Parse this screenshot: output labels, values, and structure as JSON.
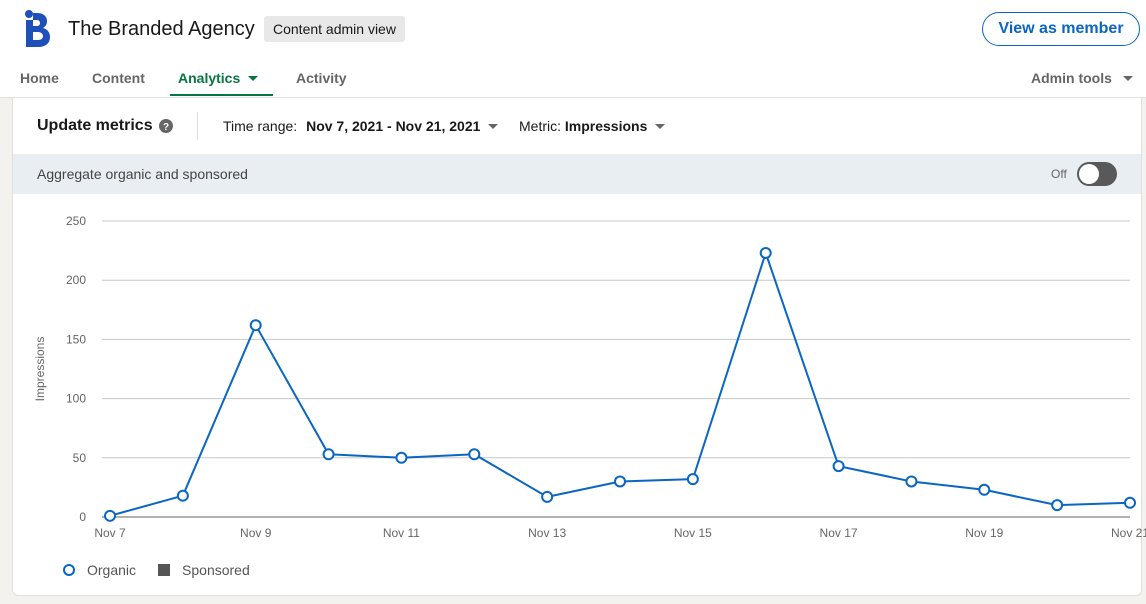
{
  "header": {
    "org_name": "The Branded Agency",
    "admin_badge": "Content admin view",
    "view_as_member": "View as member",
    "logo_icon": "branded-agency-logo"
  },
  "nav": {
    "home": "Home",
    "content": "Content",
    "analytics": "Analytics",
    "activity": "Activity",
    "admin_tools": "Admin tools"
  },
  "controls": {
    "title": "Update metrics",
    "time_range_label": "Time range:",
    "time_range_value": "Nov 7, 2021 - Nov 21, 2021",
    "metric_label": "Metric:",
    "metric_value": "Impressions"
  },
  "aggregate": {
    "label": "Aggregate organic and sponsored",
    "toggle_state": "Off"
  },
  "colors": {
    "accent": "#0a66c2",
    "active_tab": "#057642",
    "sponsored": "#555555"
  },
  "chart_data": {
    "type": "line",
    "ylabel": "Impressions",
    "ylim": [
      0,
      250
    ],
    "yticks": [
      0,
      50,
      100,
      150,
      200,
      250
    ],
    "x": [
      "Nov 7",
      "Nov 8",
      "Nov 9",
      "Nov 10",
      "Nov 11",
      "Nov 12",
      "Nov 13",
      "Nov 14",
      "Nov 15",
      "Nov 16",
      "Nov 17",
      "Nov 18",
      "Nov 19",
      "Nov 20",
      "Nov 21"
    ],
    "xtick_labels": [
      "Nov 7",
      "Nov 9",
      "Nov 11",
      "Nov 13",
      "Nov 15",
      "Nov 17",
      "Nov 19",
      "Nov 21"
    ],
    "series": [
      {
        "name": "Organic",
        "values": [
          1,
          18,
          162,
          53,
          50,
          53,
          17,
          30,
          32,
          223,
          43,
          30,
          23,
          10,
          12
        ]
      }
    ],
    "legend": [
      "Organic",
      "Sponsored"
    ],
    "legend_position": "bottom-left",
    "grid": true
  }
}
